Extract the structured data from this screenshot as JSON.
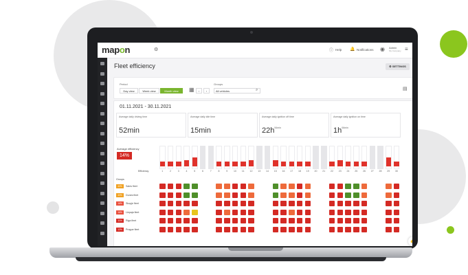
{
  "app": {
    "logo_prefix": "map",
    "logo_o": "o",
    "logo_suffix": "n"
  },
  "topbar": {
    "help_label": "Help",
    "notifications_label": "Notifications",
    "user_name": "Admin",
    "user_company": "My Company"
  },
  "page": {
    "title": "Fleet efficiency",
    "settings_label": "SETTINGS"
  },
  "filters": {
    "period_label": "Period",
    "views": [
      {
        "label": "Day view"
      },
      {
        "label": "Week view"
      },
      {
        "label": "Month view"
      }
    ],
    "active_view": 2,
    "groups_label": "Groups",
    "groups_value": "All vehicles"
  },
  "summary": {
    "date_range": "01.11.2021 - 30.11.2021",
    "stats": [
      {
        "label": "Average daily driving time",
        "value": "52min",
        "sup": ""
      },
      {
        "label": "Average daily idle time",
        "value": "15min",
        "sup": ""
      },
      {
        "label": "Average daily ignition off time",
        "value": "22h",
        "sup": "54min"
      },
      {
        "label": "Average daily ignition on time",
        "value": "1h",
        "sup": "06min"
      }
    ],
    "efficiency_label": "Average efficiency",
    "efficiency_value": "14%"
  },
  "grid": {
    "efficiency_row_label": "Efficiency",
    "groups_header": "Groups",
    "days": [
      "1",
      "2",
      "3",
      "4",
      "5",
      "6",
      "7",
      "8",
      "9",
      "10",
      "11",
      "12",
      "13",
      "14",
      "15",
      "16",
      "17",
      "18",
      "19",
      "20",
      "21",
      "22",
      "23",
      "24",
      "25",
      "26",
      "27",
      "28",
      "29",
      "30"
    ],
    "weekend_days": [
      6,
      7,
      13,
      14,
      20,
      21,
      27,
      28
    ],
    "bar_levels": [
      0.25,
      0.25,
      0.25,
      0.3,
      0.45,
      0,
      0,
      0.25,
      0.25,
      0.25,
      0.25,
      0.3,
      0,
      0,
      0.3,
      0.25,
      0.25,
      0.25,
      0.25,
      0,
      0,
      0.25,
      0.3,
      0.25,
      0.25,
      0.25,
      0,
      0,
      0.45,
      0.25
    ],
    "rows": [
      {
        "name": "Sales fleet",
        "pct": "40%",
        "pct_color": "#f0a020",
        "cells": [
          "r",
          "r",
          "r",
          "g",
          "g",
          "",
          "",
          "o",
          "o",
          "r",
          "r",
          "o",
          "",
          "",
          "g",
          "o",
          "o",
          "r",
          "o",
          "",
          "",
          "r",
          "r",
          "g",
          "g",
          "o",
          "",
          "",
          "o",
          "r"
        ]
      },
      {
        "name": "Dunes fleet",
        "pct": "40%",
        "pct_color": "#f0a020",
        "cells": [
          "r",
          "r",
          "r",
          "g",
          "g",
          "",
          "",
          "o",
          "o",
          "r",
          "r",
          "o",
          "",
          "",
          "g",
          "o",
          "o",
          "r",
          "o",
          "",
          "",
          "r",
          "r",
          "g",
          "g",
          "o",
          "",
          "",
          "o",
          "r"
        ]
      },
      {
        "name": "Skopje fleet",
        "pct": "16%",
        "pct_color": "#e94e3b",
        "cells": [
          "r",
          "r",
          "r",
          "r",
          "r",
          "",
          "",
          "r",
          "r",
          "r",
          "r",
          "r",
          "",
          "",
          "r",
          "r",
          "r",
          "r",
          "r",
          "",
          "",
          "r",
          "r",
          "r",
          "r",
          "r",
          "",
          "",
          "r",
          "r"
        ]
      },
      {
        "name": "Liepaja fleet",
        "pct": "16%",
        "pct_color": "#e94e3b",
        "cells": [
          "r",
          "r",
          "r",
          "o",
          "y",
          "",
          "",
          "r",
          "o",
          "r",
          "r",
          "r",
          "",
          "",
          "r",
          "r",
          "o",
          "r",
          "r",
          "",
          "",
          "r",
          "r",
          "r",
          "r",
          "r",
          "",
          "",
          "r",
          "r"
        ]
      },
      {
        "name": "Riga fleet",
        "pct": "11%",
        "pct_color": "#d42a24",
        "cells": [
          "r",
          "r",
          "r",
          "r",
          "r",
          "",
          "",
          "r",
          "r",
          "r",
          "r",
          "r",
          "",
          "",
          "r",
          "r",
          "r",
          "r",
          "r",
          "",
          "",
          "r",
          "r",
          "r",
          "r",
          "r",
          "",
          "",
          "r",
          "r"
        ]
      },
      {
        "name": "Prague fleet",
        "pct": "12%",
        "pct_color": "#d42a24",
        "cells": [
          "r",
          "r",
          "r",
          "r",
          "r",
          "",
          "",
          "r",
          "r",
          "r",
          "r",
          "r",
          "",
          "",
          "r",
          "r",
          "r",
          "r",
          "r",
          "",
          "",
          "r",
          "r",
          "r",
          "r",
          "r",
          "",
          "",
          "r",
          "r"
        ]
      }
    ]
  },
  "colors": {
    "r": "#d42a24",
    "o": "#ee6a3b",
    "y": "#e7c51e",
    "g": "#4f8f2a",
    "accent": "#7ab52f",
    "bar": "#e0322b"
  }
}
